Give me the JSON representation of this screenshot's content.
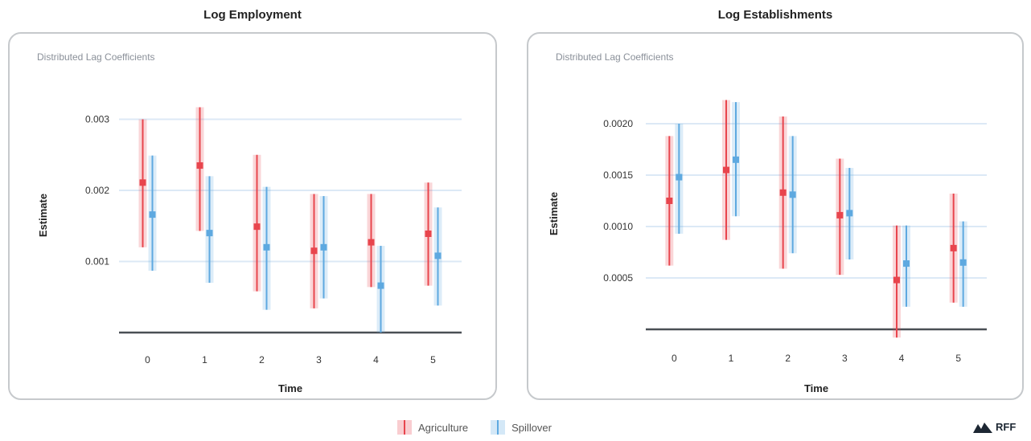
{
  "colors": {
    "agriculture": "#e8454d",
    "spillover": "#5ea9e0",
    "grid": "#dce9f6",
    "baseline": "#4a4f55"
  },
  "legend": {
    "agriculture": "Agriculture",
    "spillover": "Spillover"
  },
  "logo": {
    "text": "RFF",
    "icon": "rff-mountain-icon"
  },
  "chart_data": [
    {
      "type": "errorbar",
      "title": "Log Employment",
      "subtitle": "Distributed Lag Coefficients",
      "xlabel": "Time",
      "ylabel": "Estimate",
      "ylim": [
        0,
        0.0033
      ],
      "yticks": [
        0.001,
        0.002,
        0.003
      ],
      "ytick_labels": [
        "0.001",
        "0.002",
        "0.003"
      ],
      "categories": [
        "0",
        "1",
        "2",
        "3",
        "4",
        "5"
      ],
      "grid": true,
      "legend": "bottom-center",
      "series": [
        {
          "name": "Agriculture",
          "values": [
            0.00211,
            0.00235,
            0.00149,
            0.00115,
            0.00127,
            0.00139
          ],
          "lower": [
            0.0012,
            0.00143,
            0.00058,
            0.00034,
            0.00064,
            0.00066
          ],
          "upper": [
            0.003,
            0.00317,
            0.0025,
            0.00195,
            0.00195,
            0.00211
          ]
        },
        {
          "name": "Spillover",
          "values": [
            0.00166,
            0.0014,
            0.0012,
            0.0012,
            0.00066,
            0.00108
          ],
          "lower": [
            0.00087,
            0.0007,
            0.00032,
            0.00048,
            0.0,
            0.00038
          ],
          "upper": [
            0.00249,
            0.0022,
            0.00205,
            0.00192,
            0.00122,
            0.00176
          ]
        }
      ]
    },
    {
      "type": "errorbar",
      "title": "Log Establishments",
      "subtitle": "Distributed Lag Coefficients",
      "xlabel": "Time",
      "ylabel": "Estimate",
      "ylim": [
        0,
        0.00225
      ],
      "yticks": [
        0.0005,
        0.001,
        0.0015,
        0.002
      ],
      "ytick_labels": [
        "0.0005",
        "0.0010",
        "0.0015",
        "0.0020"
      ],
      "categories": [
        "0",
        "1",
        "2",
        "3",
        "4",
        "5"
      ],
      "grid": true,
      "legend": "bottom-center",
      "series": [
        {
          "name": "Agriculture",
          "values": [
            0.00125,
            0.00155,
            0.00133,
            0.00111,
            0.00048,
            0.00079
          ],
          "lower": [
            0.00062,
            0.00087,
            0.00059,
            0.00053,
            -8e-05,
            0.00026
          ],
          "upper": [
            0.00188,
            0.00223,
            0.00207,
            0.00166,
            0.00101,
            0.00132
          ]
        },
        {
          "name": "Spillover",
          "values": [
            0.00148,
            0.00165,
            0.00131,
            0.00113,
            0.00064,
            0.00065
          ],
          "lower": [
            0.00093,
            0.0011,
            0.00074,
            0.00068,
            0.00022,
            0.00022
          ],
          "upper": [
            0.002,
            0.00221,
            0.00188,
            0.00157,
            0.00101,
            0.00105
          ]
        }
      ]
    }
  ]
}
